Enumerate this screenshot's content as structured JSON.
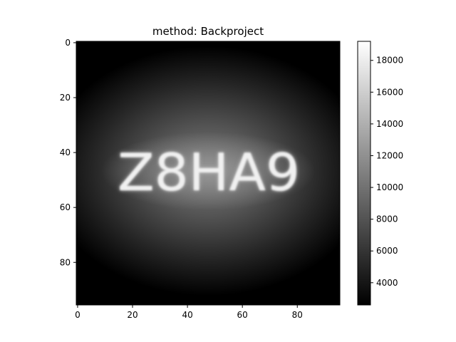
{
  "chart_data": {
    "type": "heatmap",
    "title": "method: Backproject",
    "image_text": "Z8HA9",
    "colormap": "gray",
    "x_range": [
      0,
      95
    ],
    "y_range": [
      0,
      95
    ],
    "x_ticks": [
      0,
      20,
      40,
      60,
      80
    ],
    "y_ticks": [
      0,
      20,
      40,
      60,
      80
    ],
    "colorbar": {
      "min": 2600,
      "max": 19200,
      "ticks": [
        4000,
        6000,
        8000,
        10000,
        12000,
        14000,
        16000,
        18000
      ]
    }
  }
}
